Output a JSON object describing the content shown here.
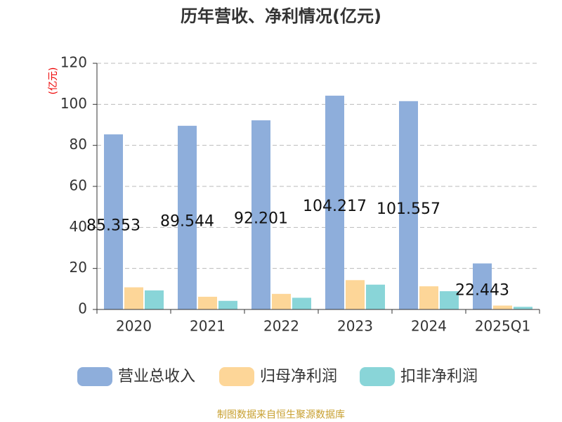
{
  "chart_data": {
    "type": "bar",
    "title": "历年营收、净利情况(亿元)",
    "y_label": "(亿元)",
    "categories": [
      "2020",
      "2021",
      "2022",
      "2023",
      "2024",
      "2025Q1"
    ],
    "series": [
      {
        "name": "营业总收入",
        "color": "#8eaedb",
        "show_labels": true,
        "values": [
          85.353,
          89.544,
          92.201,
          104.217,
          101.557,
          22.443
        ]
      },
      {
        "name": "归母净利润",
        "color": "#fdd698",
        "show_labels": false,
        "values": [
          10.8,
          6.2,
          7.6,
          14.3,
          11.3,
          1.9
        ]
      },
      {
        "name": "扣非净利润",
        "color": "#89d5d8",
        "show_labels": false,
        "values": [
          9.3,
          4.2,
          5.7,
          12.1,
          8.9,
          1.3
        ]
      }
    ],
    "ylim": [
      0,
      120
    ],
    "yticks": [
      0,
      20,
      40,
      60,
      80,
      100,
      120
    ],
    "grid": true,
    "source": "制图数据来自恒生聚源数据库"
  }
}
